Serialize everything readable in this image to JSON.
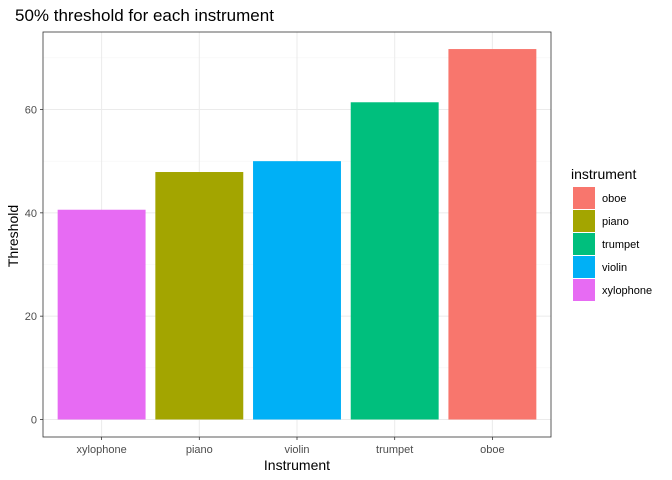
{
  "chart_data": {
    "type": "bar",
    "title": "50% threshold for each instrument",
    "xlabel": "Instrument",
    "ylabel": "Threshold",
    "categories": [
      "xylophone",
      "piano",
      "violin",
      "trumpet",
      "oboe"
    ],
    "values": [
      40.6,
      47.9,
      50.0,
      61.4,
      71.7
    ],
    "colors": [
      "#E76BF3",
      "#A3A500",
      "#00B0F6",
      "#00BF7D",
      "#F8766D"
    ],
    "ylim": [
      0,
      75
    ],
    "yticks": [
      0,
      20,
      40,
      60
    ],
    "grid": true,
    "legend": {
      "title": "instrument",
      "position": "right",
      "items": [
        {
          "label": "oboe",
          "color": "#F8766D"
        },
        {
          "label": "piano",
          "color": "#A3A500"
        },
        {
          "label": "trumpet",
          "color": "#00BF7D"
        },
        {
          "label": "violin",
          "color": "#00B0F6"
        },
        {
          "label": "xylophone",
          "color": "#E76BF3"
        }
      ]
    }
  }
}
